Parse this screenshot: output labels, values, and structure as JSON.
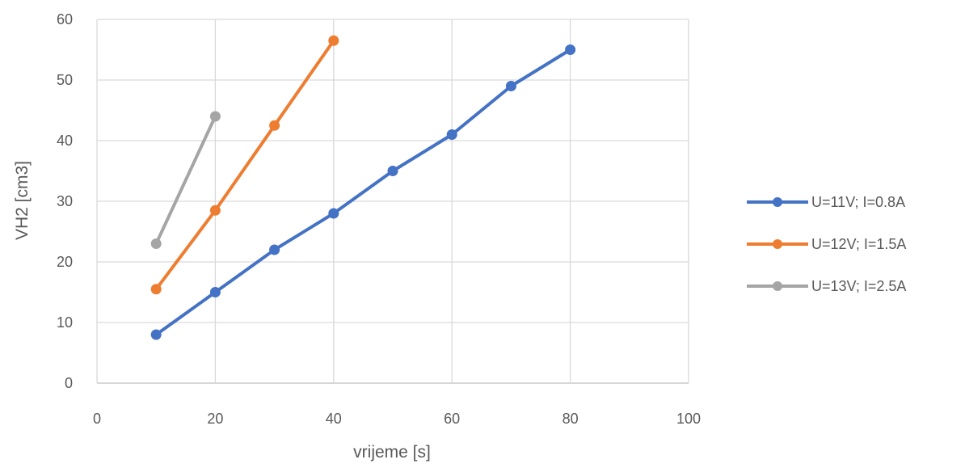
{
  "chart_data": {
    "type": "line",
    "title": "",
    "xlabel": "vrijeme [s]",
    "ylabel": "VH2 [cm3]",
    "xlim": [
      0,
      100
    ],
    "ylim": [
      0,
      60
    ],
    "xticks": [
      0,
      20,
      40,
      60,
      80,
      100
    ],
    "yticks": [
      0,
      10,
      20,
      30,
      40,
      50,
      60
    ],
    "grid": true,
    "legend_position": "right",
    "series": [
      {
        "name": "U=11V; I=0.8A",
        "color": "#4472C4",
        "x": [
          10,
          20,
          30,
          40,
          50,
          60,
          70,
          80
        ],
        "y": [
          8,
          15,
          22,
          28,
          35,
          41,
          49,
          55
        ]
      },
      {
        "name": "U=12V; I=1.5A",
        "color": "#ED7D31",
        "x": [
          10,
          20,
          30,
          40
        ],
        "y": [
          15.5,
          28.5,
          42.5,
          56.5
        ]
      },
      {
        "name": "U=13V; I=2.5A",
        "color": "#A5A5A5",
        "x": [
          10,
          20
        ],
        "y": [
          23,
          44
        ]
      }
    ]
  }
}
